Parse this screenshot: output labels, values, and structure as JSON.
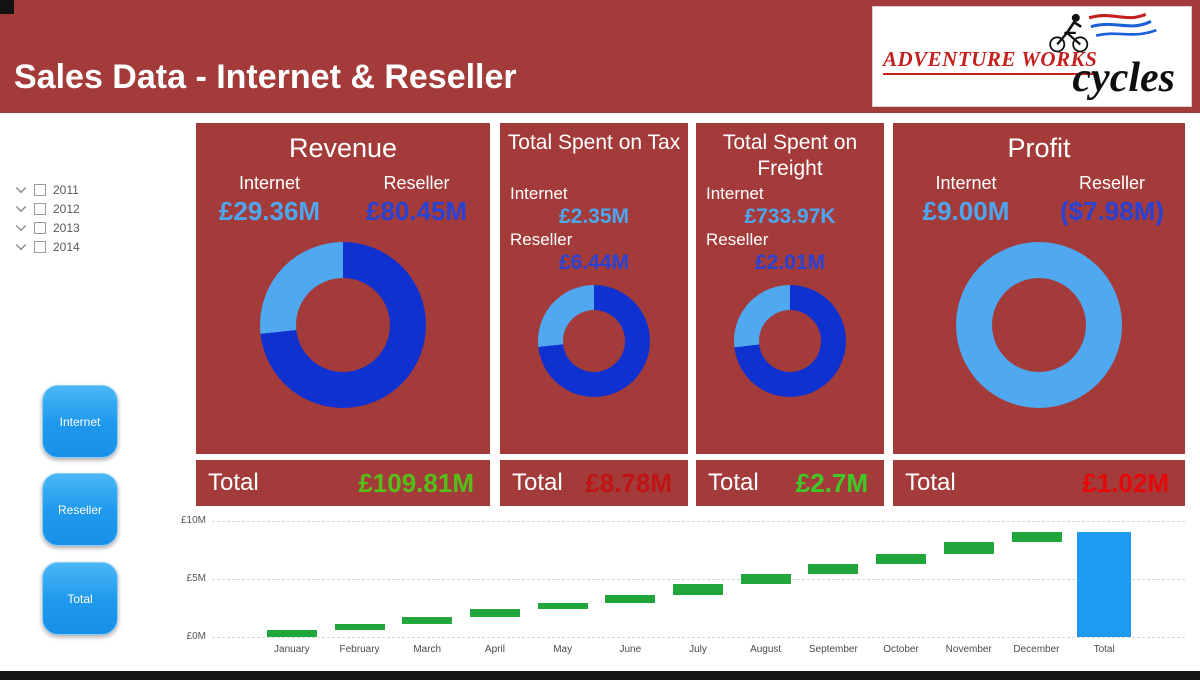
{
  "header": {
    "title": "Sales Data - Internet & Reseller",
    "logo": {
      "top": "ADVENTURE WORKS",
      "bottom": "cycles"
    }
  },
  "sidebar": {
    "years": [
      "2011",
      "2012",
      "2013",
      "2014"
    ],
    "buttons": [
      "Internet",
      "Reseller",
      "Total"
    ]
  },
  "cards": [
    {
      "title": "Revenue",
      "internet_label": "Internet",
      "reseller_label": "Reseller",
      "internet_value": "£29.36M",
      "reseller_value": "£80.45M",
      "donut": {
        "internet_pct": 26.7
      }
    },
    {
      "title": "Total Spent on Tax",
      "internet_label": "Internet",
      "reseller_label": "Reseller",
      "internet_value": "£2.35M",
      "reseller_value": "£6.44M",
      "donut": {
        "internet_pct": 26.7
      }
    },
    {
      "title": "Total Spent on Freight",
      "internet_label": "Internet",
      "reseller_label": "Reseller",
      "internet_value": "£733.97K",
      "reseller_value": "£2.01M",
      "donut": {
        "internet_pct": 26.8
      }
    },
    {
      "title": "Profit",
      "internet_label": "Internet",
      "reseller_label": "Reseller",
      "internet_value": "£9.00M",
      "reseller_value": "($7.98M)",
      "donut": {
        "internet_pct": 100
      }
    }
  ],
  "totals": [
    {
      "label": "Total",
      "value": "£109.81M",
      "color": "#56BE19"
    },
    {
      "label": "Total",
      "value": "£8.78M",
      "color": "#C01414"
    },
    {
      "label": "Total",
      "value": "£2.7M",
      "color": "#3FC926"
    },
    {
      "label": "Total",
      "value": "£1.02M",
      "color": "#E60808"
    }
  ],
  "colors": {
    "card_red": "#A43B3B",
    "internet_blue": "#4DA6F0",
    "reseller_blue": "#2742D4",
    "donut_internet": "#4FA8F0",
    "donut_reseller": "#0F31D0"
  },
  "chart_data": {
    "type": "waterfall",
    "title": "",
    "categories": [
      "January",
      "February",
      "March",
      "April",
      "May",
      "June",
      "July",
      "August",
      "September",
      "October",
      "November",
      "December",
      "Total"
    ],
    "increments": [
      0.6,
      0.5,
      0.6,
      0.7,
      0.55,
      0.7,
      0.95,
      0.8,
      0.9,
      0.85,
      1.05,
      0.85
    ],
    "total": 9.05,
    "y_ticks": [
      "£0M",
      "£5M",
      "£10M"
    ],
    "ylim": [
      0,
      10
    ],
    "increase_color": "#21A63C",
    "total_color": "#1E9BF0",
    "gridlines": "dashed"
  }
}
